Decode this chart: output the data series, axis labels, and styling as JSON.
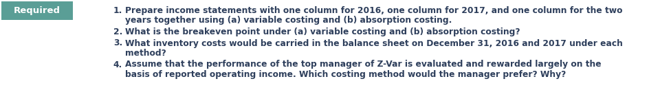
{
  "badge_text": "Required",
  "badge_bg_color": "#5a9e96",
  "badge_text_color": "#ffffff",
  "text_color": "#2e3f5c",
  "bg_color": "#ffffff",
  "font_size": 8.8,
  "badge_font_size": 9.5,
  "items": [
    {
      "number": "1.",
      "lines": [
        "Prepare income statements with one column for 2016, one column for 2017, and one column for the two",
        "years together using (a) variable costing and (b) absorption costing."
      ]
    },
    {
      "number": "2.",
      "lines": [
        "What is the breakeven point under (a) variable costing and (b) absorption costing?"
      ]
    },
    {
      "number": "3.",
      "lines": [
        "What inventory costs would be carried in the balance sheet on December 31, 2016 and 2017 under each",
        "method?"
      ]
    },
    {
      "number": "4.",
      "lines": [
        "Assume that the performance of the top manager of Z-Var is evaluated and rewarded largely on the",
        "basis of reported operating income. Which costing method would the manager prefer? Why?"
      ]
    }
  ]
}
